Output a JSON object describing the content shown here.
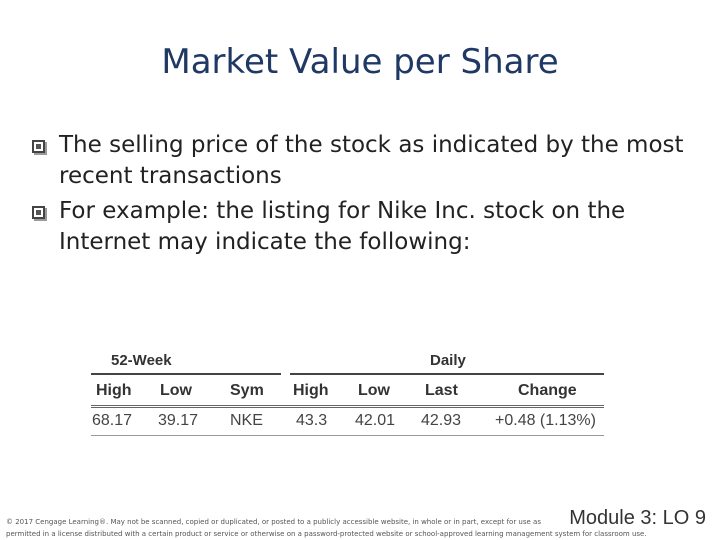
{
  "slide": {
    "title": "Market Value per Share",
    "bullets": [
      "The selling price of the stock as indicated by the most recent transactions",
      "For example: the listing for Nike Inc. stock on the Internet may indicate the following:"
    ]
  },
  "stock_table": {
    "group_headers": [
      "52-Week",
      "Daily"
    ],
    "columns": [
      "High",
      "Low",
      "Sym",
      "High",
      "Low",
      "Last",
      "Change"
    ],
    "row": [
      "68.17",
      "39.17",
      "NKE",
      "43.3",
      "42.01",
      "42.93",
      "+0.48 (1.13%)"
    ]
  },
  "footer": {
    "copyright_line1": "© 2017 Cengage Learning®. May not be scanned, copied or duplicated, or posted to a publicly accessible website, in whole or in part, except for use as",
    "copyright_line2": "permitted in a license distributed with a certain product or service or otherwise on a password-protected website or school-approved learning management system for classroom use.",
    "module": "Module 3: LO 9"
  },
  "colors": {
    "title": "#1f3864",
    "text": "#222222"
  },
  "icons": {
    "bullet": "checkbox-bullet-icon"
  }
}
